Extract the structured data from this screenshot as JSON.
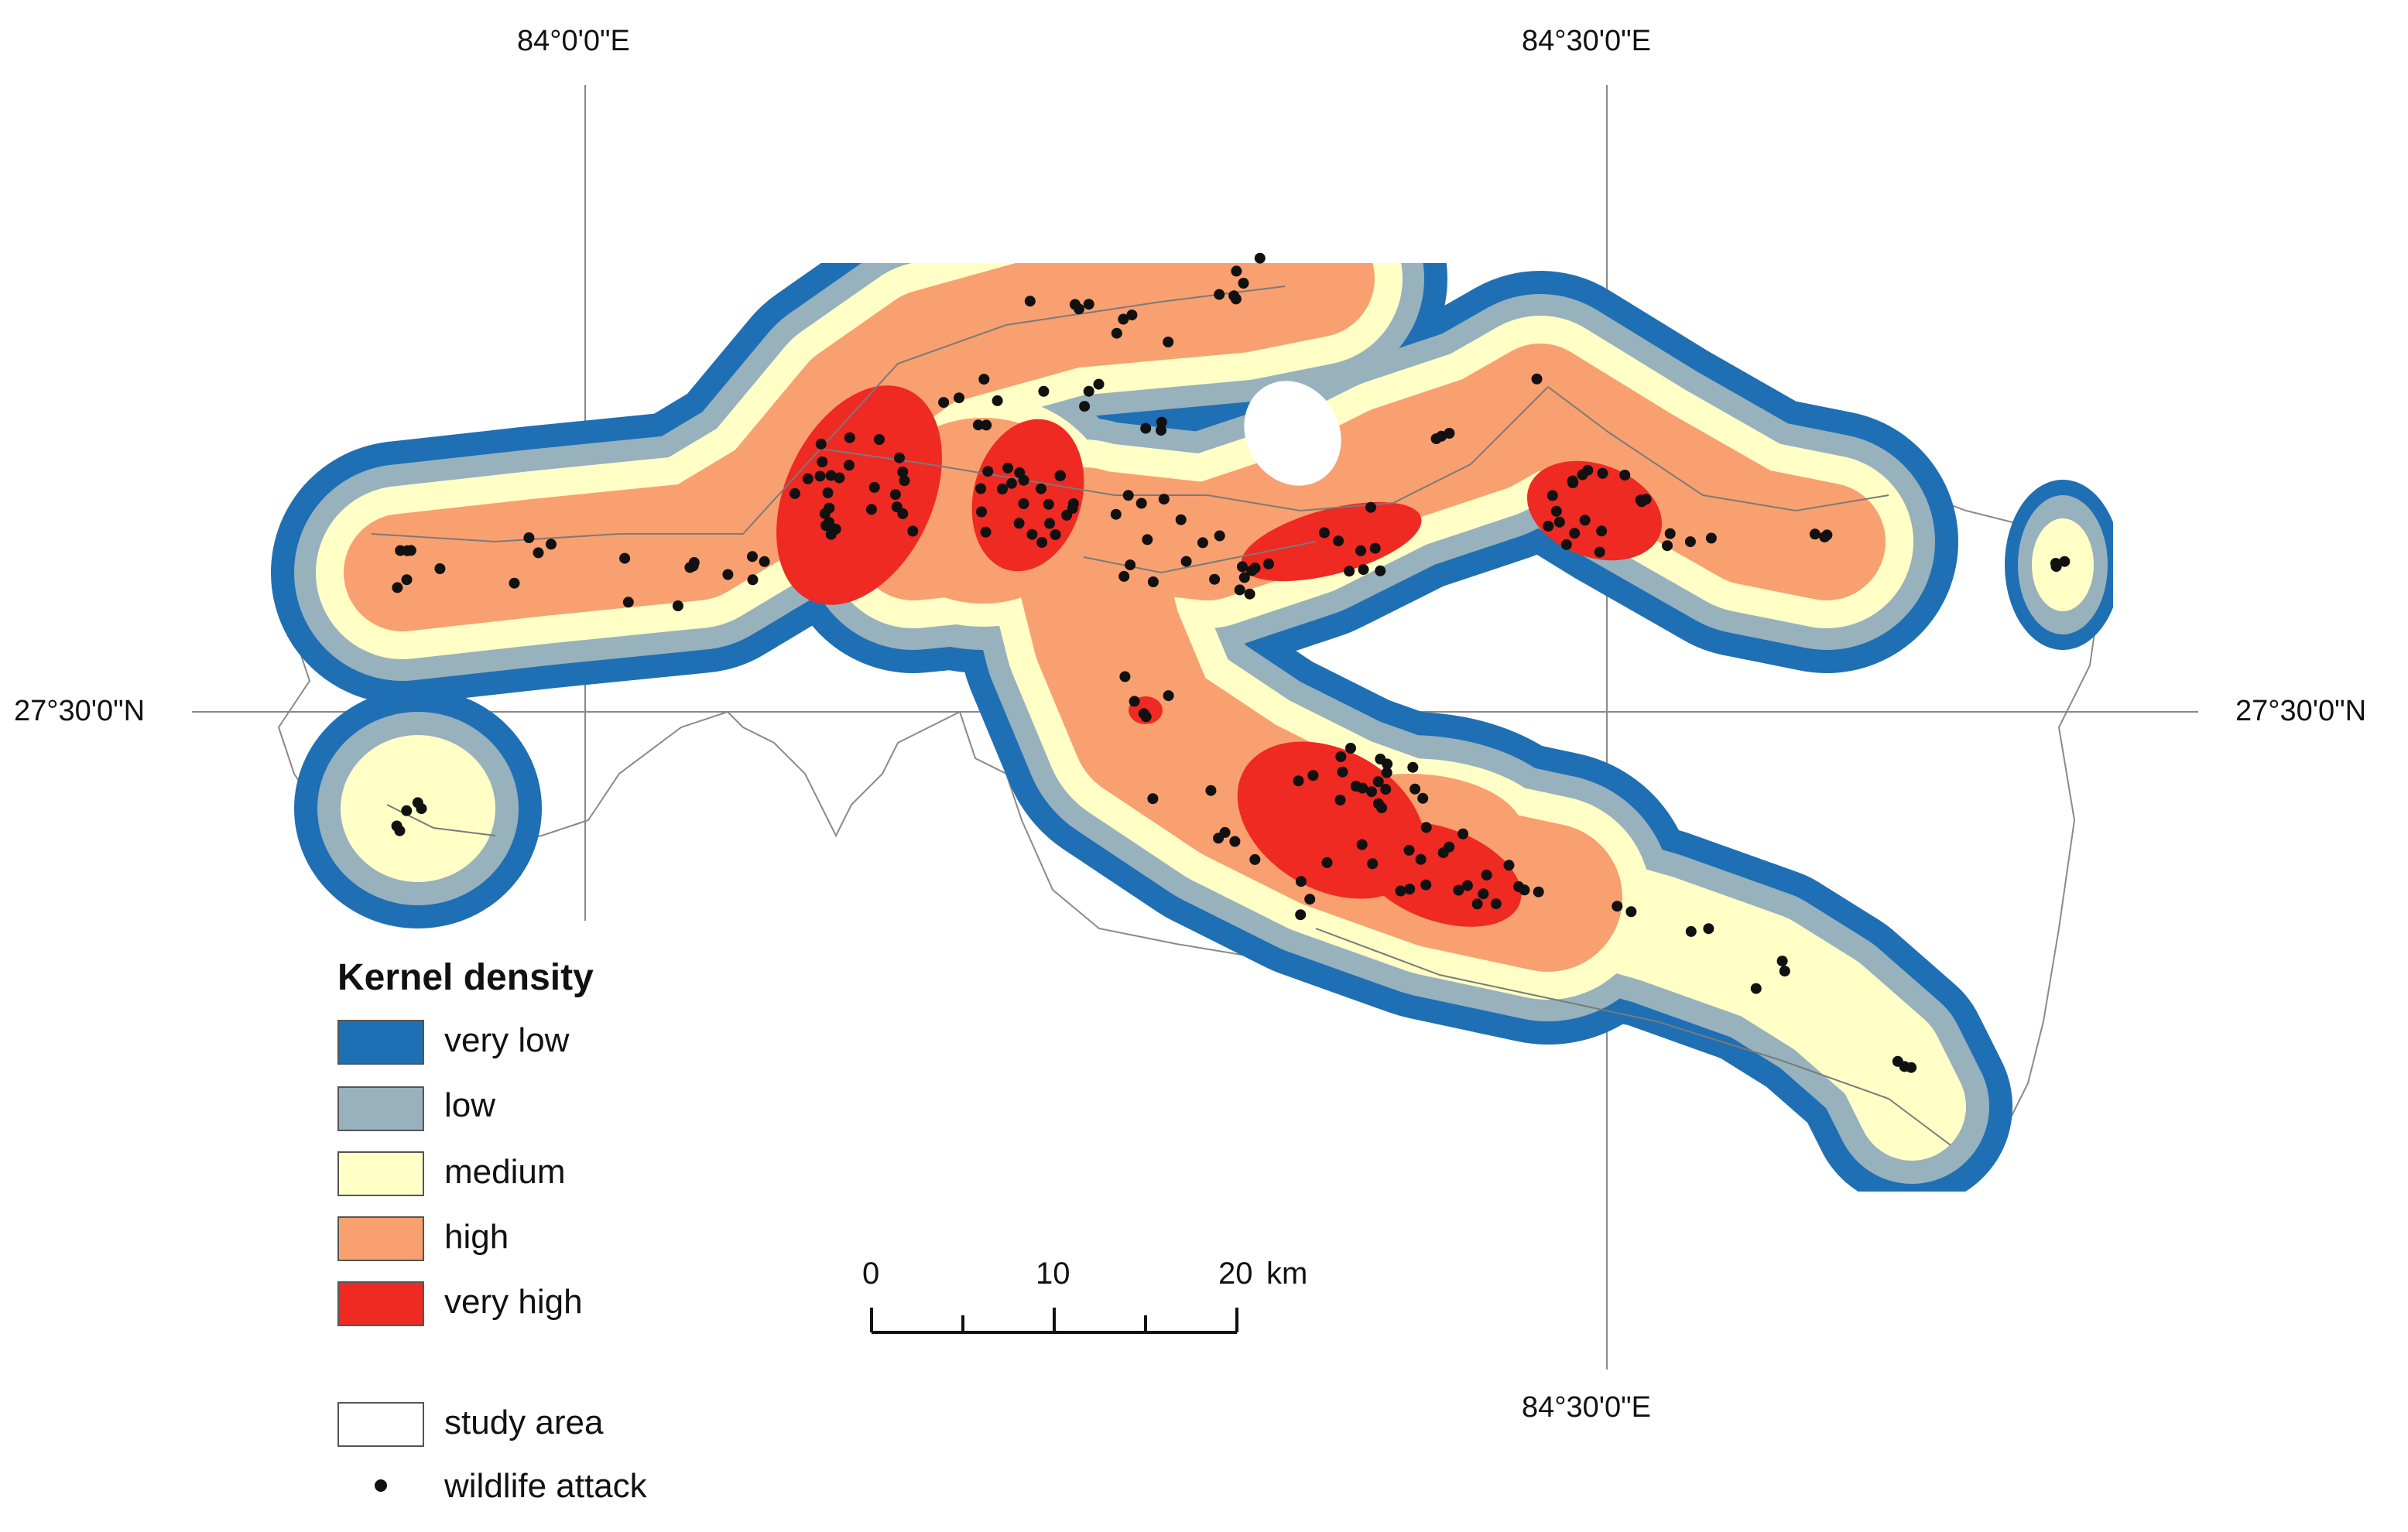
{
  "graticule": {
    "top_lon_left": "84°0'0\"E",
    "top_lon_right": "84°30'0\"E",
    "bottom_lon_right": "84°30'0\"E",
    "left_lat": "27°30'0\"N",
    "right_lat": "27°30'0\"N"
  },
  "legend": {
    "title": "Kernel density",
    "classes": [
      {
        "label": "very low",
        "color": "#1f6fb4"
      },
      {
        "label": "low",
        "color": "#97b1bd"
      },
      {
        "label": "medium",
        "color": "#ffffc6"
      },
      {
        "label": "high",
        "color": "#f9a070"
      },
      {
        "label": "very high",
        "color": "#ee2a22"
      }
    ],
    "study_area": {
      "label": "study area",
      "color": "#ffffff"
    },
    "wildlife_attack": {
      "label": "wildlife attack",
      "color": "#111111"
    }
  },
  "scale_bar": {
    "labels": [
      "0",
      "10",
      "20"
    ],
    "unit": "km"
  }
}
